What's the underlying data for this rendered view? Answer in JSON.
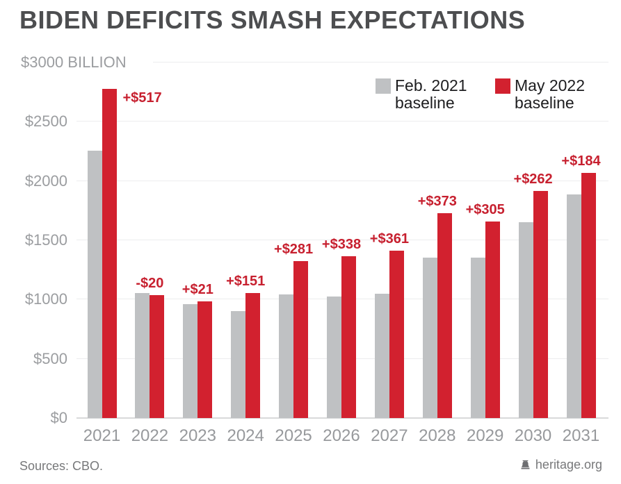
{
  "title": "BIDEN DEFICITS SMASH EXPECTATIONS",
  "footer": {
    "source": "Sources: CBO.",
    "brand": "heritage.org",
    "brand_icon": "liberty-bell-icon"
  },
  "colors": {
    "bar_gray": "#BFC1C3",
    "bar_red": "#D2212F",
    "label_red": "#C7202F",
    "grid": "#ECEDEE",
    "axis": "#D8D9DA",
    "title_text": "#4D4E50",
    "ytick_text": "#9B9DA0",
    "year_text": "#97999C",
    "legend_text": "#1D1D1F",
    "footer_text": "#77787A"
  },
  "chart_data": {
    "type": "bar",
    "title": "BIDEN DEFICITS SMASH EXPECTATIONS",
    "xlabel": "",
    "ylabel": "$ BILLION",
    "ylim": [
      0,
      3000
    ],
    "grid": true,
    "legend_position": "top-right",
    "categories": [
      "2021",
      "2022",
      "2023",
      "2024",
      "2025",
      "2026",
      "2027",
      "2028",
      "2029",
      "2030",
      "2031"
    ],
    "series": [
      {
        "name": "Feb. 2021 baseline",
        "color": "#BFC1C3",
        "values": [
          2258,
          1056,
          963,
          905,
          1041,
          1025,
          1050,
          1355,
          1351,
          1654,
          1886
        ]
      },
      {
        "name": "May 2022 baseline",
        "color": "#D2212F",
        "values": [
          2775,
          1036,
          984,
          1056,
          1322,
          1363,
          1411,
          1728,
          1656,
          1916,
          2070
        ]
      }
    ],
    "diff_labels": [
      "+$517",
      "-$20",
      "+$21",
      "+$151",
      "+$281",
      "+$338",
      "+$361",
      "+$373",
      "+$305",
      "+$262",
      "+$184"
    ],
    "yticks": [
      {
        "value": 0,
        "label": "$0"
      },
      {
        "value": 500,
        "label": "$500"
      },
      {
        "value": 1000,
        "label": "$1000"
      },
      {
        "value": 1500,
        "label": "$1500"
      },
      {
        "value": 2000,
        "label": "$2000"
      },
      {
        "value": 2500,
        "label": "$2500"
      },
      {
        "value": 3000,
        "label": "$3000 BILLION"
      }
    ]
  }
}
